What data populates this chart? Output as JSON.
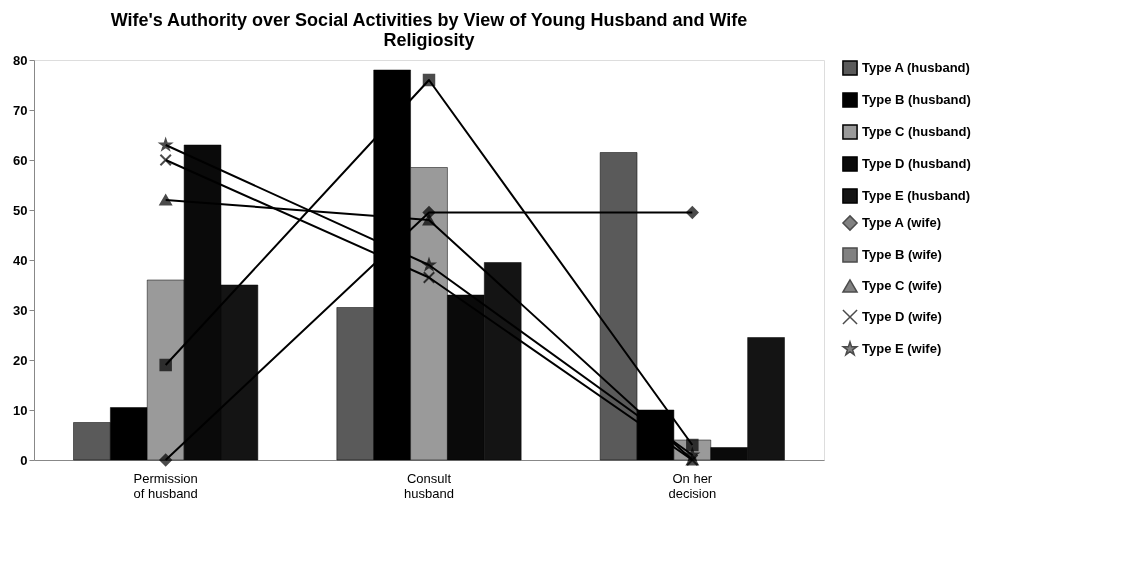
{
  "chart_data": {
    "type": "bar",
    "title": "Wife's Authority over Social Activities by View of Young Husband and Wife Religiosity",
    "categories": [
      "Permission\nof husband",
      "Consult\n\nhusband",
      "On her\ndecision"
    ],
    "series": [
      {
        "name": "Type A (husband)",
        "color": "#5a5a5a",
        "values": [
          7.5,
          30.5,
          61.5
        ]
      },
      {
        "name": "Type B (husband)",
        "color": "#000000",
        "values": [
          10.5,
          78,
          10
        ]
      },
      {
        "name": "Type C (husband)",
        "color": "#9a9a9a",
        "values": [
          36,
          58.5,
          4
        ]
      },
      {
        "name": "Type D (husband)",
        "color": "#0a0a0a",
        "values": [
          63,
          33,
          2.5
        ]
      },
      {
        "name": "Type E (husband)",
        "color": "#141414",
        "values": [
          35,
          39.5,
          24.5
        ]
      },
      {
        "name": "Type A (wife)",
        "type": "line",
        "marker": "diamond",
        "color": "#000000",
        "values": [
          0,
          49.5,
          49.5
        ]
      },
      {
        "name": "Type B (wife)",
        "type": "line",
        "marker": "square",
        "color": "#000000",
        "values": [
          19,
          76,
          3
        ]
      },
      {
        "name": "Type C (wife)",
        "type": "line",
        "marker": "triangle",
        "color": "#000000",
        "values": [
          52,
          48,
          0
        ]
      },
      {
        "name": "Type D (wife)",
        "type": "line",
        "marker": "cross",
        "color": "#000000",
        "values": [
          60,
          36.5,
          0
        ]
      },
      {
        "name": "Type E (wife)",
        "type": "line",
        "marker": "star",
        "color": "#000000",
        "values": [
          63,
          39,
          1
        ]
      }
    ],
    "ylim": [
      0,
      80
    ],
    "yticks": [
      0,
      10,
      20,
      30,
      40,
      50,
      60,
      70,
      80
    ],
    "grid": false,
    "legend": "right"
  }
}
